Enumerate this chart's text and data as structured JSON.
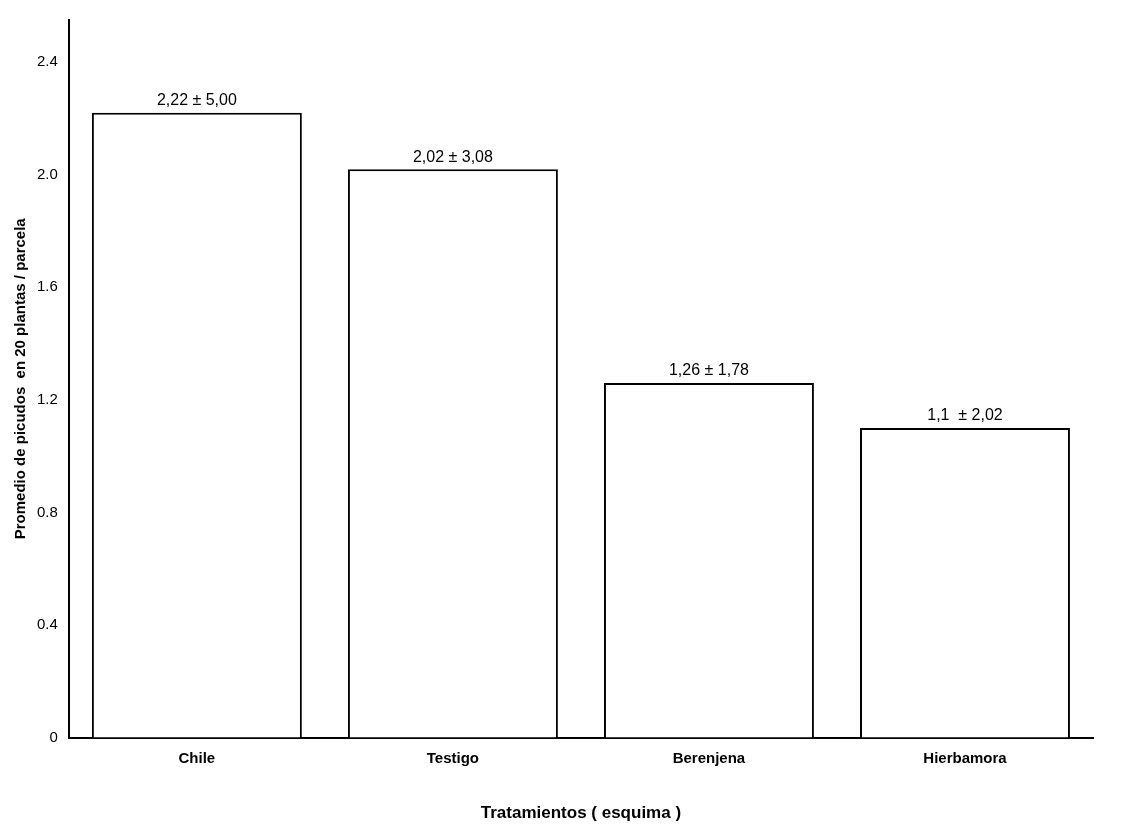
{
  "chart_data": {
    "type": "bar",
    "xlabel": "Tratamientos ( esquima )",
    "ylabel": "Promedio de picudos  en 20 plantas / parcela",
    "categories": [
      "Chile",
      "Testigo",
      "Berenjena",
      "Hierbamora"
    ],
    "values": [
      2.22,
      2.02,
      1.26,
      1.1
    ],
    "value_labels": [
      "2,22 ± 5,00",
      "2,02 ± 3,08",
      "1,26 ± 1,78",
      "1,1  ± 2,02"
    ],
    "color": "#ffffff",
    "ylim": [
      0,
      2.55
    ],
    "yticks": [
      0,
      0.4,
      0.8,
      1.2,
      1.6,
      {
        "value": 2,
        "label": "2.0"
      },
      2.4
    ],
    "grid": false,
    "legend": false
  }
}
